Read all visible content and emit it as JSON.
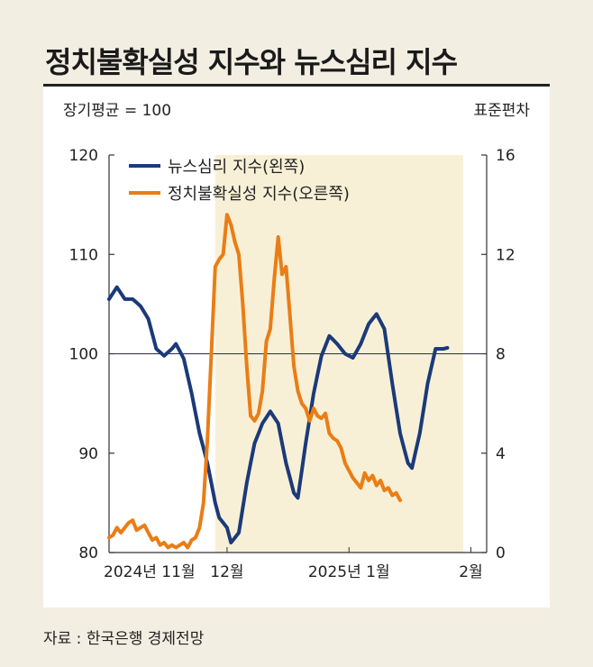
{
  "title": "정치불확실성 지수와 뉴스심리 지수",
  "source": "자료 : 한국은행 경제전망",
  "chart_data": {
    "type": "line",
    "left_axis_label": "장기평균 = 100",
    "right_axis_label": "표준편차",
    "left_ylim": [
      80,
      120
    ],
    "right_ylim": [
      0,
      16
    ],
    "left_ticks": [
      "120",
      "110",
      "100",
      "90",
      "80"
    ],
    "right_ticks": [
      "16",
      "12",
      "8",
      "4",
      "0"
    ],
    "reference_line_left": 100,
    "shaded_region": {
      "from_index": 27,
      "to_index": 90
    },
    "x_tick_labels": [
      {
        "label": "2024년 11월",
        "index": 0
      },
      {
        "label": "12월",
        "index": 30
      },
      {
        "label": "2025년 1월",
        "index": 61
      },
      {
        "label": "2월",
        "index": 92
      }
    ],
    "n_points": 97,
    "series": [
      {
        "name": "뉴스심리 지수(왼쪽)",
        "axis": "left",
        "color": "#1b3a7a",
        "keypoints": [
          [
            0,
            105.5
          ],
          [
            2,
            106.7
          ],
          [
            4,
            105.5
          ],
          [
            6,
            105.5
          ],
          [
            8,
            104.8
          ],
          [
            10,
            103.5
          ],
          [
            12,
            100.5
          ],
          [
            14,
            99.8
          ],
          [
            16,
            100.5
          ],
          [
            17,
            101
          ],
          [
            19,
            99.5
          ],
          [
            21,
            96
          ],
          [
            23,
            92
          ],
          [
            25,
            89
          ],
          [
            27,
            85
          ],
          [
            28,
            83.5
          ],
          [
            30,
            82.5
          ],
          [
            31,
            81
          ],
          [
            33,
            82
          ],
          [
            35,
            87
          ],
          [
            37,
            91
          ],
          [
            39,
            93
          ],
          [
            41,
            94.2
          ],
          [
            43,
            93
          ],
          [
            45,
            89
          ],
          [
            47,
            86
          ],
          [
            48,
            85.5
          ],
          [
            50,
            91
          ],
          [
            52,
            96
          ],
          [
            54,
            99.8
          ],
          [
            56,
            101.8
          ],
          [
            58,
            101
          ],
          [
            60,
            100
          ],
          [
            62,
            99.6
          ],
          [
            64,
            101
          ],
          [
            66,
            103
          ],
          [
            68,
            104
          ],
          [
            70,
            102.5
          ],
          [
            72,
            97
          ],
          [
            74,
            92
          ],
          [
            76,
            89
          ],
          [
            77,
            88.5
          ],
          [
            79,
            92
          ],
          [
            81,
            97
          ],
          [
            83,
            100.5
          ],
          [
            85,
            100.5
          ],
          [
            86,
            100.6
          ]
        ]
      },
      {
        "name": "정치불확실성 지수(오른쪽)",
        "axis": "right",
        "color": "#ea7d15",
        "keypoints": [
          [
            0,
            0.6
          ],
          [
            1,
            0.7
          ],
          [
            2,
            1
          ],
          [
            3,
            0.8
          ],
          [
            4,
            1
          ],
          [
            5,
            1.2
          ],
          [
            6,
            1.3
          ],
          [
            7,
            0.9
          ],
          [
            8,
            1
          ],
          [
            9,
            1.1
          ],
          [
            10,
            0.8
          ],
          [
            11,
            0.5
          ],
          [
            12,
            0.6
          ],
          [
            13,
            0.3
          ],
          [
            14,
            0.4
          ],
          [
            15,
            0.2
          ],
          [
            16,
            0.3
          ],
          [
            17,
            0.2
          ],
          [
            18,
            0.3
          ],
          [
            19,
            0.4
          ],
          [
            20,
            0.2
          ],
          [
            21,
            0.5
          ],
          [
            22,
            0.6
          ],
          [
            23,
            1
          ],
          [
            24,
            2
          ],
          [
            25,
            4.5
          ],
          [
            26,
            8
          ],
          [
            27,
            11.5
          ],
          [
            28,
            11.8
          ],
          [
            29,
            12
          ],
          [
            30,
            13.6
          ],
          [
            31,
            13.2
          ],
          [
            32,
            12.5
          ],
          [
            33,
            12
          ],
          [
            34,
            10
          ],
          [
            35,
            7.5
          ],
          [
            36,
            5.5
          ],
          [
            37,
            5.3
          ],
          [
            38,
            5.6
          ],
          [
            39,
            6.5
          ],
          [
            40,
            8.5
          ],
          [
            41,
            9
          ],
          [
            42,
            11
          ],
          [
            43,
            12.7
          ],
          [
            44,
            11.2
          ],
          [
            45,
            11.5
          ],
          [
            46,
            9.5
          ],
          [
            47,
            7.5
          ],
          [
            48,
            6.5
          ],
          [
            49,
            6
          ],
          [
            50,
            5.8
          ],
          [
            51,
            5.3
          ],
          [
            52,
            5.8
          ],
          [
            53,
            5.5
          ],
          [
            54,
            5.4
          ],
          [
            55,
            5.6
          ],
          [
            56,
            4.8
          ],
          [
            57,
            4.6
          ],
          [
            58,
            4.5
          ],
          [
            59,
            4.2
          ],
          [
            60,
            3.6
          ],
          [
            61,
            3.3
          ],
          [
            62,
            3
          ],
          [
            63,
            2.8
          ],
          [
            64,
            2.6
          ],
          [
            65,
            3.2
          ],
          [
            66,
            2.9
          ],
          [
            67,
            3.1
          ],
          [
            68,
            2.7
          ],
          [
            69,
            2.9
          ],
          [
            70,
            2.5
          ],
          [
            71,
            2.6
          ],
          [
            72,
            2.3
          ],
          [
            73,
            2.4
          ],
          [
            74,
            2.1
          ]
        ]
      }
    ]
  }
}
